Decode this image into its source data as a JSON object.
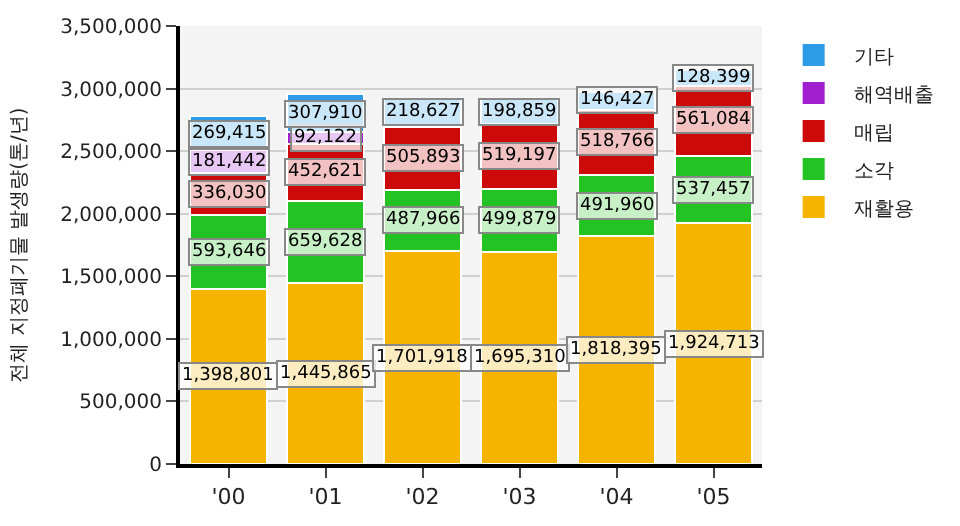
{
  "chart_data": {
    "type": "bar",
    "stacked": true,
    "ylabel": "전체 지정폐기물 발생량(톤/년)",
    "categories": [
      "'00",
      "'01",
      "'02",
      "'03",
      "'04",
      "'05"
    ],
    "series": [
      {
        "name": "재활용",
        "color": "#f5b400",
        "values": [
          1398801,
          1445865,
          1701918,
          1695310,
          1818395,
          1924713
        ],
        "value_labels": [
          "1,398,801",
          "1,445,865",
          "1,701,918",
          "1,695,310",
          "1,818,395",
          "1,924,713"
        ]
      },
      {
        "name": "소각",
        "color": "#22c322",
        "values": [
          593646,
          659628,
          487966,
          499879,
          491960,
          537457
        ],
        "value_labels": [
          "593,646",
          "659,628",
          "487,966",
          "499,879",
          "491,960",
          "537,457"
        ]
      },
      {
        "name": "매립",
        "color": "#cc0a0a",
        "values": [
          336030,
          452621,
          505893,
          519197,
          518766,
          561084
        ],
        "value_labels": [
          "336,030",
          "452,621",
          "505,893",
          "519,197",
          "518,766",
          "561,084"
        ]
      },
      {
        "name": "해역배출",
        "color": "#a020d0",
        "values": [
          181442,
          92122,
          null,
          null,
          null,
          null
        ],
        "value_labels": [
          "181,442",
          "92,122",
          null,
          null,
          null,
          null
        ]
      },
      {
        "name": "기타",
        "color": "#2e9be8",
        "values": [
          269415,
          307910,
          218627,
          198859,
          146427,
          128399
        ],
        "value_labels": [
          "269,415",
          "307,910",
          "218,627",
          "198,859",
          "146,427",
          "128,399"
        ]
      }
    ],
    "ylim": [
      0,
      3500000
    ],
    "yticks": [
      {
        "value": 0,
        "label": "0"
      },
      {
        "value": 500000,
        "label": "500,000"
      },
      {
        "value": 1000000,
        "label": "1,000,000"
      },
      {
        "value": 1500000,
        "label": "1,500,000"
      },
      {
        "value": 2000000,
        "label": "2,000,000"
      },
      {
        "value": 2500000,
        "label": "2,500,000"
      },
      {
        "value": 3000000,
        "label": "3,000,000"
      },
      {
        "value": 3500000,
        "label": "3,500,000"
      }
    ],
    "grid": "y",
    "legend": "top right"
  }
}
